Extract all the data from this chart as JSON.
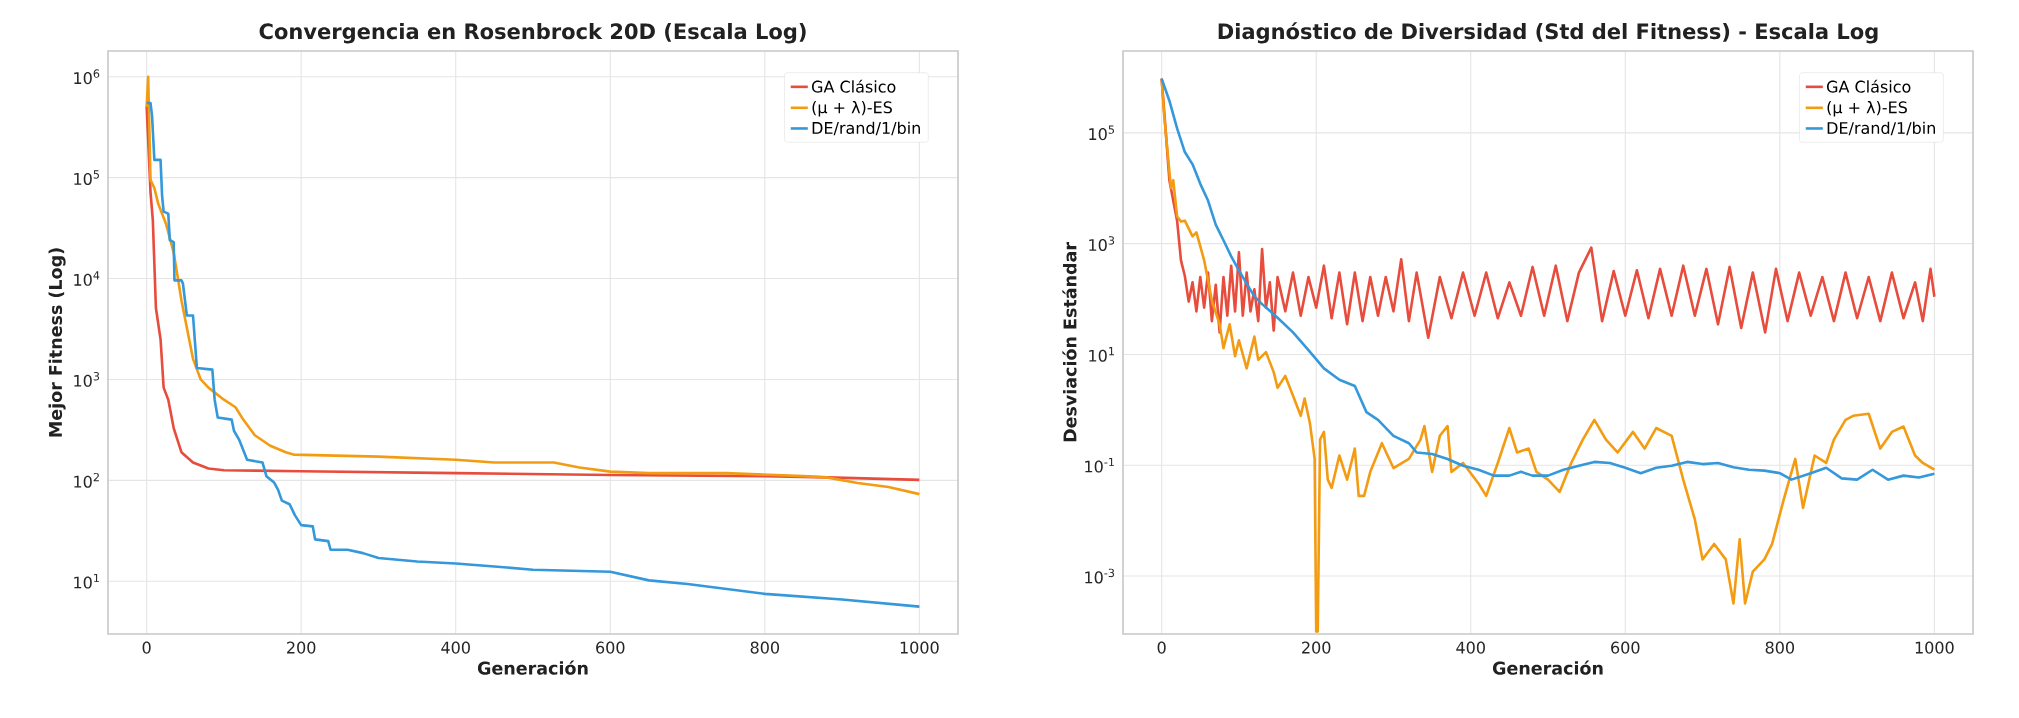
{
  "chart_data": [
    {
      "type": "line",
      "title": "Convergencia en Rosenbrock 20D (Escala Log)",
      "xlabel": "Generación",
      "ylabel": "Mejor Fitness (Log)",
      "xlim": [
        -50,
        1050
      ],
      "ylim": [
        3,
        1800000
      ],
      "log": "y",
      "grid": true,
      "legend": "top right",
      "xticks": [
        0,
        200,
        400,
        600,
        800,
        1000
      ],
      "yticks": [
        {
          "value": 10,
          "label": "10$^{1}$"
        },
        {
          "value": 100,
          "label": "10$^{2}$"
        },
        {
          "value": 1000,
          "label": "10$^{3}$"
        },
        {
          "value": 10000,
          "label": "10$^{4}$"
        },
        {
          "value": 100000,
          "label": "10$^{5}$"
        },
        {
          "value": 1000000,
          "label": "10$^{6}$"
        }
      ],
      "series": [
        {
          "name": "GA Clásico",
          "color": "#e74c3c",
          "x": [
            0,
            5,
            8,
            12,
            18,
            22,
            28,
            35,
            45,
            60,
            80,
            100,
            200,
            400,
            600,
            800,
            880,
            1000
          ],
          "values": [
            510000,
            72000,
            38000,
            5100,
            2500,
            830,
            630,
            330,
            190,
            150,
            131,
            126,
            123,
            118,
            113,
            110,
            107,
            101
          ]
        },
        {
          "name": "(μ + λ)-ES",
          "color": "#f39c12",
          "x": [
            0,
            2,
            5,
            10,
            15,
            25,
            35,
            40,
            45,
            55,
            60,
            70,
            80,
            100,
            115,
            125,
            140,
            160,
            180,
            190,
            300,
            400,
            450,
            527,
            560,
            600,
            650,
            750,
            850,
            880,
            920,
            960,
            1000
          ],
          "values": [
            500000,
            1000000,
            95000,
            79000,
            55000,
            35000,
            18000,
            10600,
            6100,
            2500,
            1600,
            1000,
            830,
            630,
            530,
            400,
            280,
            220,
            190,
            180,
            172,
            160,
            150,
            150,
            134,
            122,
            118,
            118,
            110,
            107,
            94,
            86,
            73
          ]
        },
        {
          "name": "DE/rand/1/bin",
          "color": "#3498db",
          "x": [
            0,
            5,
            7,
            10,
            18,
            20,
            22,
            28,
            30,
            35,
            36,
            45,
            47,
            52,
            60,
            65,
            85,
            88,
            92,
            110,
            113,
            120,
            125,
            130,
            150,
            155,
            165,
            170,
            175,
            185,
            192,
            200,
            215,
            218,
            235,
            238,
            260,
            280,
            300,
            350,
            400,
            450,
            500,
            600,
            650,
            700,
            800,
            900,
            1000
          ],
          "values": [
            550000,
            550000,
            410000,
            150000,
            150000,
            66000,
            46000,
            44000,
            24000,
            23000,
            9600,
            9600,
            8900,
            4300,
            4300,
            1300,
            1250,
            630,
            420,
            400,
            310,
            250,
            200,
            160,
            150,
            110,
            95,
            81,
            63,
            58,
            45,
            36,
            35,
            26,
            25,
            20.5,
            20.5,
            19,
            17,
            15.7,
            15,
            14,
            13,
            12.4,
            10.2,
            9.4,
            7.5,
            6.6,
            5.6
          ]
        }
      ]
    },
    {
      "type": "line",
      "title": "Diagnóstico de Diversidad (Std del Fitness) - Escala Log",
      "xlabel": "Generación",
      "ylabel": "Desviación Estándar",
      "xlim": [
        -50,
        1050
      ],
      "ylim": [
        9e-05,
        3000000
      ],
      "log": "y",
      "grid": true,
      "legend": "top right",
      "xticks": [
        0,
        200,
        400,
        600,
        800,
        1000
      ],
      "yticks": [
        {
          "value": 0.001,
          "label": "10$^{-3}$"
        },
        {
          "value": 0.1,
          "label": "10$^{-1}$"
        },
        {
          "value": 10,
          "label": "10$^{1}$"
        },
        {
          "value": 1000,
          "label": "10$^{3}$"
        },
        {
          "value": 100000,
          "label": "10$^{5}$"
        }
      ],
      "series": [
        {
          "name": "GA Clásico",
          "color": "#e74c3c",
          "x": [
            0,
            5,
            10,
            20,
            25,
            30,
            35,
            40,
            45,
            50,
            55,
            60,
            65,
            70,
            75,
            80,
            85,
            90,
            95,
            100,
            105,
            110,
            115,
            120,
            125,
            130,
            135,
            140,
            145,
            150,
            160,
            170,
            180,
            190,
            200,
            210,
            220,
            230,
            240,
            250,
            260,
            270,
            280,
            290,
            300,
            310,
            320,
            330,
            345,
            360,
            375,
            390,
            405,
            420,
            435,
            450,
            465,
            480,
            495,
            510,
            525,
            540,
            556,
            570,
            585,
            600,
            615,
            630,
            645,
            660,
            675,
            690,
            705,
            720,
            735,
            750,
            765,
            781,
            795,
            810,
            825,
            840,
            855,
            870,
            885,
            900,
            915,
            930,
            945,
            960,
            975,
            985,
            995,
            1000
          ],
          "values": [
            950000,
            120000,
            14000,
            2600,
            500,
            260,
            90,
            200,
            60,
            250,
            70,
            300,
            40,
            180,
            25,
            250,
            50,
            400,
            60,
            700,
            50,
            300,
            60,
            150,
            40,
            800,
            70,
            200,
            27,
            250,
            60,
            300,
            50,
            250,
            70,
            400,
            45,
            300,
            35,
            300,
            40,
            250,
            50,
            250,
            60,
            520,
            40,
            300,
            20,
            250,
            45,
            300,
            50,
            300,
            45,
            200,
            50,
            380,
            50,
            400,
            40,
            300,
            850,
            40,
            320,
            50,
            330,
            45,
            350,
            50,
            400,
            50,
            350,
            35,
            380,
            30,
            300,
            25,
            350,
            40,
            300,
            50,
            250,
            40,
            300,
            45,
            250,
            40,
            300,
            45,
            200,
            40,
            350,
            110
          ]
        },
        {
          "name": "(μ + λ)-ES",
          "color": "#f39c12",
          "x": [
            0,
            3,
            12,
            15,
            20,
            25,
            30,
            40,
            45,
            55,
            65,
            75,
            80,
            88,
            95,
            100,
            110,
            120,
            125,
            135,
            145,
            150,
            160,
            170,
            180,
            185,
            192,
            198,
            200,
            202,
            205,
            210,
            215,
            220,
            230,
            240,
            250,
            255,
            262,
            270,
            285,
            300,
            320,
            335,
            340,
            350,
            360,
            370,
            375,
            390,
            410,
            420,
            435,
            450,
            460,
            475,
            485,
            500,
            515,
            530,
            545,
            560,
            575,
            590,
            610,
            625,
            640,
            660,
            675,
            690,
            700,
            715,
            730,
            740,
            748,
            755,
            765,
            780,
            790,
            805,
            820,
            830,
            845,
            860,
            870,
            885,
            895,
            915,
            930,
            945,
            960,
            975,
            985,
            1000
          ],
          "values": [
            950000,
            230000,
            10000,
            14000,
            3100,
            2500,
            2600,
            1350,
            1600,
            500,
            95,
            35,
            13,
            35,
            9.3,
            18,
            5.6,
            21,
            8,
            11,
            4.8,
            2.5,
            4.1,
            1.8,
            0.78,
            1.6,
            0.56,
            0.13,
            0.0001,
            0.0001,
            0.29,
            0.4,
            0.055,
            0.039,
            0.15,
            0.055,
            0.2,
            0.028,
            0.028,
            0.076,
            0.25,
            0.089,
            0.13,
            0.29,
            0.51,
            0.076,
            0.34,
            0.51,
            0.076,
            0.11,
            0.047,
            0.028,
            0.11,
            0.47,
            0.17,
            0.2,
            0.076,
            0.055,
            0.033,
            0.11,
            0.29,
            0.66,
            0.29,
            0.17,
            0.4,
            0.2,
            0.47,
            0.34,
            0.055,
            0.0105,
            0.002,
            0.0038,
            0.002,
            0.00032,
            0.0046,
            0.00032,
            0.0012,
            0.002,
            0.0038,
            0.024,
            0.13,
            0.017,
            0.15,
            0.11,
            0.29,
            0.66,
            0.78,
            0.85,
            0.2,
            0.4,
            0.5,
            0.15,
            0.11,
            0.083
          ]
        },
        {
          "name": "DE/rand/1/bin",
          "color": "#3498db",
          "x": [
            0,
            10,
            20,
            30,
            40,
            50,
            60,
            70,
            80,
            90,
            100,
            110,
            120,
            130,
            150,
            170,
            190,
            210,
            230,
            250,
            265,
            280,
            300,
            320,
            330,
            350,
            370,
            390,
            410,
            430,
            450,
            465,
            480,
            500,
            520,
            540,
            560,
            580,
            600,
            620,
            640,
            660,
            680,
            700,
            720,
            740,
            760,
            780,
            800,
            815,
            840,
            860,
            880,
            900,
            920,
            940,
            960,
            980,
            1000
          ],
          "values": [
            950000,
            380000,
            120000,
            45000,
            27000,
            12000,
            6000,
            2200,
            1150,
            590,
            330,
            190,
            112,
            81,
            46,
            25,
            12,
            5.6,
            3.5,
            2.7,
            0.91,
            0.66,
            0.34,
            0.25,
            0.17,
            0.16,
            0.13,
            0.098,
            0.083,
            0.065,
            0.065,
            0.076,
            0.065,
            0.065,
            0.083,
            0.098,
            0.115,
            0.11,
            0.09,
            0.072,
            0.09,
            0.098,
            0.115,
            0.105,
            0.11,
            0.092,
            0.083,
            0.08,
            0.072,
            0.055,
            0.072,
            0.09,
            0.058,
            0.055,
            0.083,
            0.055,
            0.065,
            0.06,
            0.07
          ]
        }
      ]
    }
  ]
}
